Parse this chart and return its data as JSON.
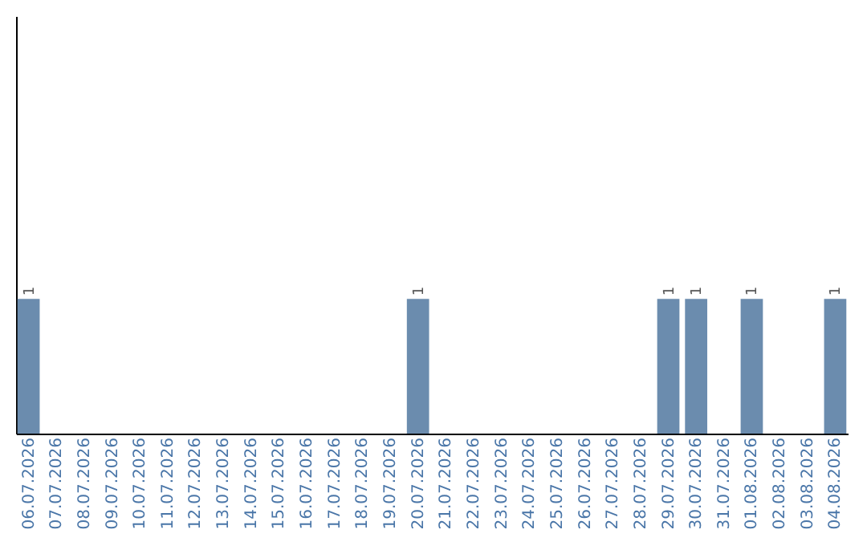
{
  "chart_data": {
    "type": "bar",
    "categories": [
      "06.07.2026",
      "07.07.2026",
      "08.07.2026",
      "09.07.2026",
      "10.07.2026",
      "11.07.2026",
      "12.07.2026",
      "13.07.2026",
      "14.07.2026",
      "15.07.2026",
      "16.07.2026",
      "17.07.2026",
      "18.07.2026",
      "19.07.2026",
      "20.07.2026",
      "21.07.2026",
      "22.07.2026",
      "23.07.2026",
      "24.07.2026",
      "25.07.2026",
      "26.07.2026",
      "27.07.2026",
      "28.07.2026",
      "29.07.2026",
      "30.07.2026",
      "31.07.2026",
      "01.08.2026",
      "02.08.2026",
      "03.08.2026",
      "04.08.2026"
    ],
    "values": [
      1,
      0,
      0,
      0,
      0,
      0,
      0,
      0,
      0,
      0,
      0,
      0,
      0,
      0,
      1,
      0,
      0,
      0,
      0,
      0,
      0,
      0,
      0,
      1,
      1,
      0,
      1,
      0,
      0,
      1
    ],
    "value_labels": [
      "1",
      null,
      null,
      null,
      null,
      null,
      null,
      null,
      null,
      null,
      null,
      null,
      null,
      null,
      "1",
      null,
      null,
      null,
      null,
      null,
      null,
      null,
      null,
      "1",
      "1",
      null,
      "1",
      null,
      null,
      "1"
    ],
    "color": "#6b8cae",
    "ylim": [
      0,
      3.1
    ],
    "tick_labels": "x"
  }
}
